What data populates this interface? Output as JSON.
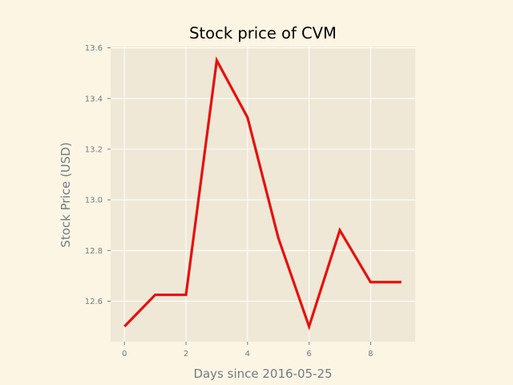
{
  "chart_data": {
    "type": "line",
    "title": "Stock price of CVM",
    "xlabel": "Days since 2016-05-25",
    "ylabel": "Stock Price (USD)",
    "x": [
      0,
      1,
      2,
      3,
      4,
      5,
      6,
      7,
      8,
      9
    ],
    "series": [
      {
        "values": [
          12.5,
          12.625,
          12.625,
          13.55,
          13.325,
          12.85,
          12.5,
          12.88,
          12.675,
          12.675
        ]
      }
    ],
    "xlim": [
      -0.45,
      9.45
    ],
    "ylim": [
      12.44,
      13.605
    ],
    "xticks": [
      "0",
      "2",
      "4",
      "6",
      "8"
    ],
    "yticks": [
      "12.6",
      "12.8",
      "13.0",
      "13.2",
      "13.4",
      "13.6"
    ],
    "grid": true,
    "colors": {
      "figure_background": "#fcf5e3",
      "plot_background": "#efe8d7",
      "grid": "#ffffff",
      "line": "#e80f0c",
      "tick_text": "#707c86"
    }
  }
}
